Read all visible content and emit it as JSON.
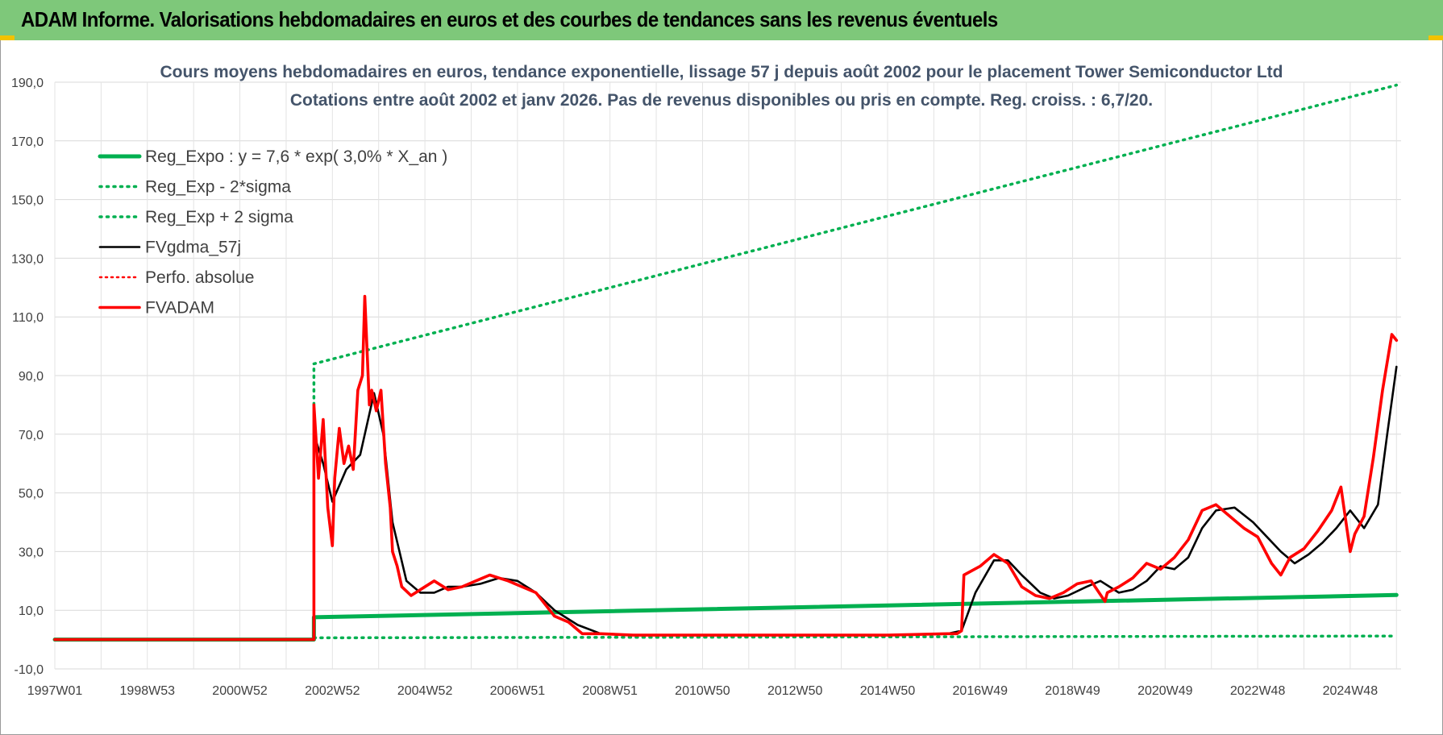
{
  "banner": {
    "title": "ADAM Informe. Valorisations hebdomadaires en euros et des courbes de tendances sans les revenus éventuels"
  },
  "colors": {
    "banner": "#7ec87a",
    "reg": "#00b050",
    "gdma": "#000000",
    "adam": "#ff0000",
    "title": "#44546a"
  },
  "chart_data": {
    "type": "line",
    "title": "Cours moyens hebdomadaires en euros, tendance exponentielle, lissage 57 j depuis août 2002 pour le placement Tower Semiconductor Ltd",
    "subtitle": "Cotations entre août 2002 et janv 2026. Pas de revenus disponibles ou pris en compte. Reg. croiss. : 6,7/20.",
    "ylim": [
      -10,
      190
    ],
    "y_ticks": [
      "190,0",
      "170,0",
      "150,0",
      "130,0",
      "110,0",
      "90,0",
      "70,0",
      "50,0",
      "30,0",
      "10,0",
      "-10,0"
    ],
    "x_ticks": [
      "1997W01",
      "1998W53",
      "2000W52",
      "2002W52",
      "2004W52",
      "2006W51",
      "2008W51",
      "2010W50",
      "2012W50",
      "2014W50",
      "2016W49",
      "2018W49",
      "2020W49",
      "2022W48",
      "2024W48"
    ],
    "grid": true,
    "legend_position": "top-left",
    "legend": [
      "Reg_Expo : y = 7,6 * exp( 3,0% *  X_an )",
      "Reg_Exp - 2*sigma",
      "Reg_Exp + 2 sigma",
      "FVgdma_57j",
      "Perfo. absolue",
      "FVADAM"
    ],
    "series": [
      {
        "name": "Reg_Expo : y = 7,6 * exp( 3,0% *  X_an )",
        "style": "solid",
        "x": [
          1997.0,
          2002.6,
          2002.6,
          2026.0
        ],
        "values": [
          0,
          0,
          7.6,
          15.2
        ]
      },
      {
        "name": "Reg_Exp - 2*sigma",
        "style": "dotted",
        "x": [
          2002.6,
          2026.0
        ],
        "values": [
          0.6,
          1.2
        ]
      },
      {
        "name": "Reg_Exp + 2 sigma",
        "style": "dotted",
        "x": [
          2002.6,
          2002.6,
          2026.0
        ],
        "values": [
          80,
          94,
          189
        ]
      },
      {
        "name": "FVgdma_57j",
        "style": "solid",
        "x": [
          1997.0,
          2002.6,
          2002.6,
          2002.8,
          2003.0,
          2003.3,
          2003.6,
          2003.9,
          2004.1,
          2004.3,
          2004.6,
          2004.9,
          2005.2,
          2005.5,
          2005.8,
          2006.2,
          2006.6,
          2007.0,
          2007.4,
          2007.8,
          2008.3,
          2008.8,
          2009.5,
          2011.0,
          2013.0,
          2015.0,
          2016.3,
          2016.6,
          2016.9,
          2017.3,
          2017.6,
          2017.9,
          2018.3,
          2018.6,
          2018.9,
          2019.3,
          2019.6,
          2020.0,
          2020.3,
          2020.6,
          2020.9,
          2021.2,
          2021.5,
          2021.8,
          2022.1,
          2022.5,
          2022.9,
          2023.2,
          2023.5,
          2023.8,
          2024.1,
          2024.4,
          2024.7,
          2025.0,
          2025.3,
          2025.6,
          2025.8,
          2026.0
        ],
        "values": [
          0,
          0,
          70,
          60,
          47,
          58,
          63,
          84,
          70,
          40,
          20,
          16,
          16,
          18,
          18,
          19,
          21,
          20,
          16,
          10,
          5,
          2,
          1.5,
          1.5,
          1.5,
          1.5,
          2,
          3,
          16,
          27,
          27,
          22,
          16,
          14,
          15,
          18,
          20,
          16,
          17,
          20,
          25,
          24,
          28,
          38,
          44,
          45,
          40,
          35,
          30,
          26,
          29,
          33,
          38,
          44,
          38,
          46,
          70,
          93
        ]
      },
      {
        "name": "Perfo. absolue",
        "style": "dotted",
        "x": [],
        "values": []
      },
      {
        "name": "FVADAM",
        "style": "solid",
        "x": [
          1997.0,
          2002.6,
          2002.6,
          2002.7,
          2002.8,
          2002.9,
          2003.0,
          2003.05,
          2003.15,
          2003.25,
          2003.35,
          2003.45,
          2003.55,
          2003.65,
          2003.7,
          2003.8,
          2003.85,
          2003.95,
          2004.05,
          2004.15,
          2004.25,
          2004.3,
          2004.4,
          2004.5,
          2004.7,
          2004.9,
          2005.2,
          2005.5,
          2005.8,
          2006.1,
          2006.4,
          2006.8,
          2007.1,
          2007.4,
          2007.8,
          2008.1,
          2008.4,
          2008.8,
          2009.5,
          2011.0,
          2013.0,
          2015.0,
          2016.3,
          2016.5,
          2016.6,
          2016.65,
          2017.0,
          2017.3,
          2017.6,
          2017.9,
          2018.2,
          2018.5,
          2018.8,
          2019.1,
          2019.4,
          2019.7,
          2019.75,
          2020.0,
          2020.3,
          2020.6,
          2020.9,
          2021.2,
          2021.5,
          2021.8,
          2022.1,
          2022.4,
          2022.7,
          2023.0,
          2023.3,
          2023.5,
          2023.7,
          2024.0,
          2024.3,
          2024.6,
          2024.8,
          2025.0,
          2025.1,
          2025.3,
          2025.5,
          2025.7,
          2025.9,
          2026.0
        ],
        "values": [
          0,
          0,
          80,
          55,
          75,
          45,
          32,
          55,
          72,
          60,
          66,
          58,
          85,
          90,
          117,
          80,
          85,
          78,
          85,
          60,
          45,
          30,
          25,
          18,
          15,
          17,
          20,
          17,
          18,
          20,
          22,
          20,
          18,
          16,
          8,
          6,
          2,
          2,
          1.5,
          1.5,
          1.5,
          1.5,
          2,
          2,
          3,
          22,
          25,
          29,
          26,
          18,
          15,
          14,
          16,
          19,
          20,
          13,
          16,
          18,
          21,
          26,
          24,
          28,
          34,
          44,
          46,
          42,
          38,
          35,
          26,
          22,
          28,
          31,
          37,
          44,
          52,
          30,
          36,
          42,
          62,
          85,
          104,
          102
        ]
      }
    ]
  }
}
